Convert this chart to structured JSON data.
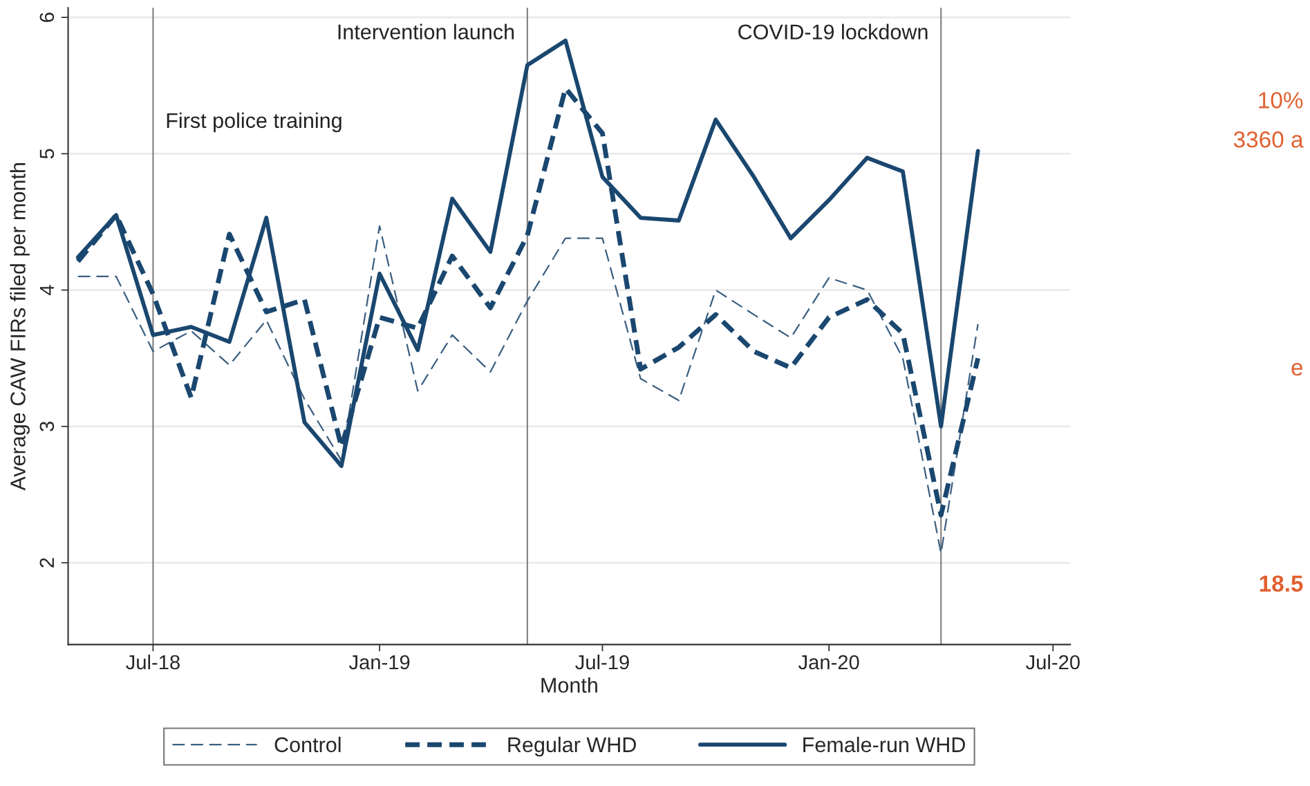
{
  "chart_data": {
    "type": "line",
    "xlabel": "Month",
    "ylabel": "Average CAW FIRs filed per month",
    "x": [
      "2018-05",
      "2018-06",
      "2018-07",
      "2018-08",
      "2018-09",
      "2018-10",
      "2018-11",
      "2018-12",
      "2019-01",
      "2019-02",
      "2019-03",
      "2019-04",
      "2019-05",
      "2019-06",
      "2019-07",
      "2019-08",
      "2019-09",
      "2019-10",
      "2019-11",
      "2019-12",
      "2020-01",
      "2020-02",
      "2020-03",
      "2020-04",
      "2020-05"
    ],
    "series": [
      {
        "name": "Control",
        "color": "#3b5f80",
        "line_style": "dashed",
        "values": [
          4.1,
          4.1,
          3.55,
          3.7,
          3.45,
          3.78,
          3.2,
          2.75,
          4.47,
          3.26,
          3.67,
          3.4,
          3.92,
          4.38,
          4.38,
          3.35,
          3.19,
          4.0,
          3.82,
          3.65,
          4.09,
          4.0,
          3.5,
          2.07,
          3.75
        ]
      },
      {
        "name": "Regular WHD",
        "color": "#1a476f",
        "line_style": "dashed",
        "values": [
          4.21,
          4.55,
          3.97,
          3.21,
          4.41,
          3.84,
          3.93,
          2.85,
          3.8,
          3.72,
          4.25,
          3.87,
          4.4,
          5.48,
          5.15,
          3.42,
          3.58,
          3.82,
          3.55,
          3.43,
          3.8,
          3.93,
          3.68,
          2.35,
          3.5
        ]
      },
      {
        "name": "Female-run WHD",
        "color": "#1a476f",
        "line_style": "solid",
        "values": [
          4.24,
          4.55,
          3.67,
          3.73,
          3.62,
          4.53,
          3.03,
          2.71,
          4.12,
          3.56,
          4.67,
          4.28,
          5.65,
          5.83,
          4.83,
          4.53,
          4.51,
          5.25,
          4.83,
          4.38,
          4.66,
          4.97,
          4.87,
          3.0,
          5.02
        ]
      }
    ],
    "xlim": [
      "2018-04-23",
      "2020-07-15"
    ],
    "ylim": [
      1.4,
      6.07
    ],
    "xticks": [
      {
        "value": "2018-07",
        "label": "Jul-18"
      },
      {
        "value": "2019-01",
        "label": "Jan-19"
      },
      {
        "value": "2019-07",
        "label": "Jul-19"
      },
      {
        "value": "2020-01",
        "label": "Jan-20"
      },
      {
        "value": "2020-07",
        "label": "Jul-20"
      }
    ],
    "yticks": [
      2,
      3,
      4,
      5,
      6
    ],
    "ref_lines": [
      {
        "axis": "x",
        "value": "2018-07",
        "label": "First police training",
        "color": "#7f7f7f"
      },
      {
        "axis": "x",
        "value": "2019-05",
        "label": "Intervention launch",
        "color": "#7f7f7f"
      },
      {
        "axis": "x",
        "value": "2020-04",
        "label": "COVID-19 lockdown",
        "color": "#7f7f7f"
      }
    ],
    "grid": "y",
    "legend": "bottom",
    "marker": "none",
    "annotations": [
      "10%",
      "3360 a",
      "e",
      "18.5"
    ]
  }
}
